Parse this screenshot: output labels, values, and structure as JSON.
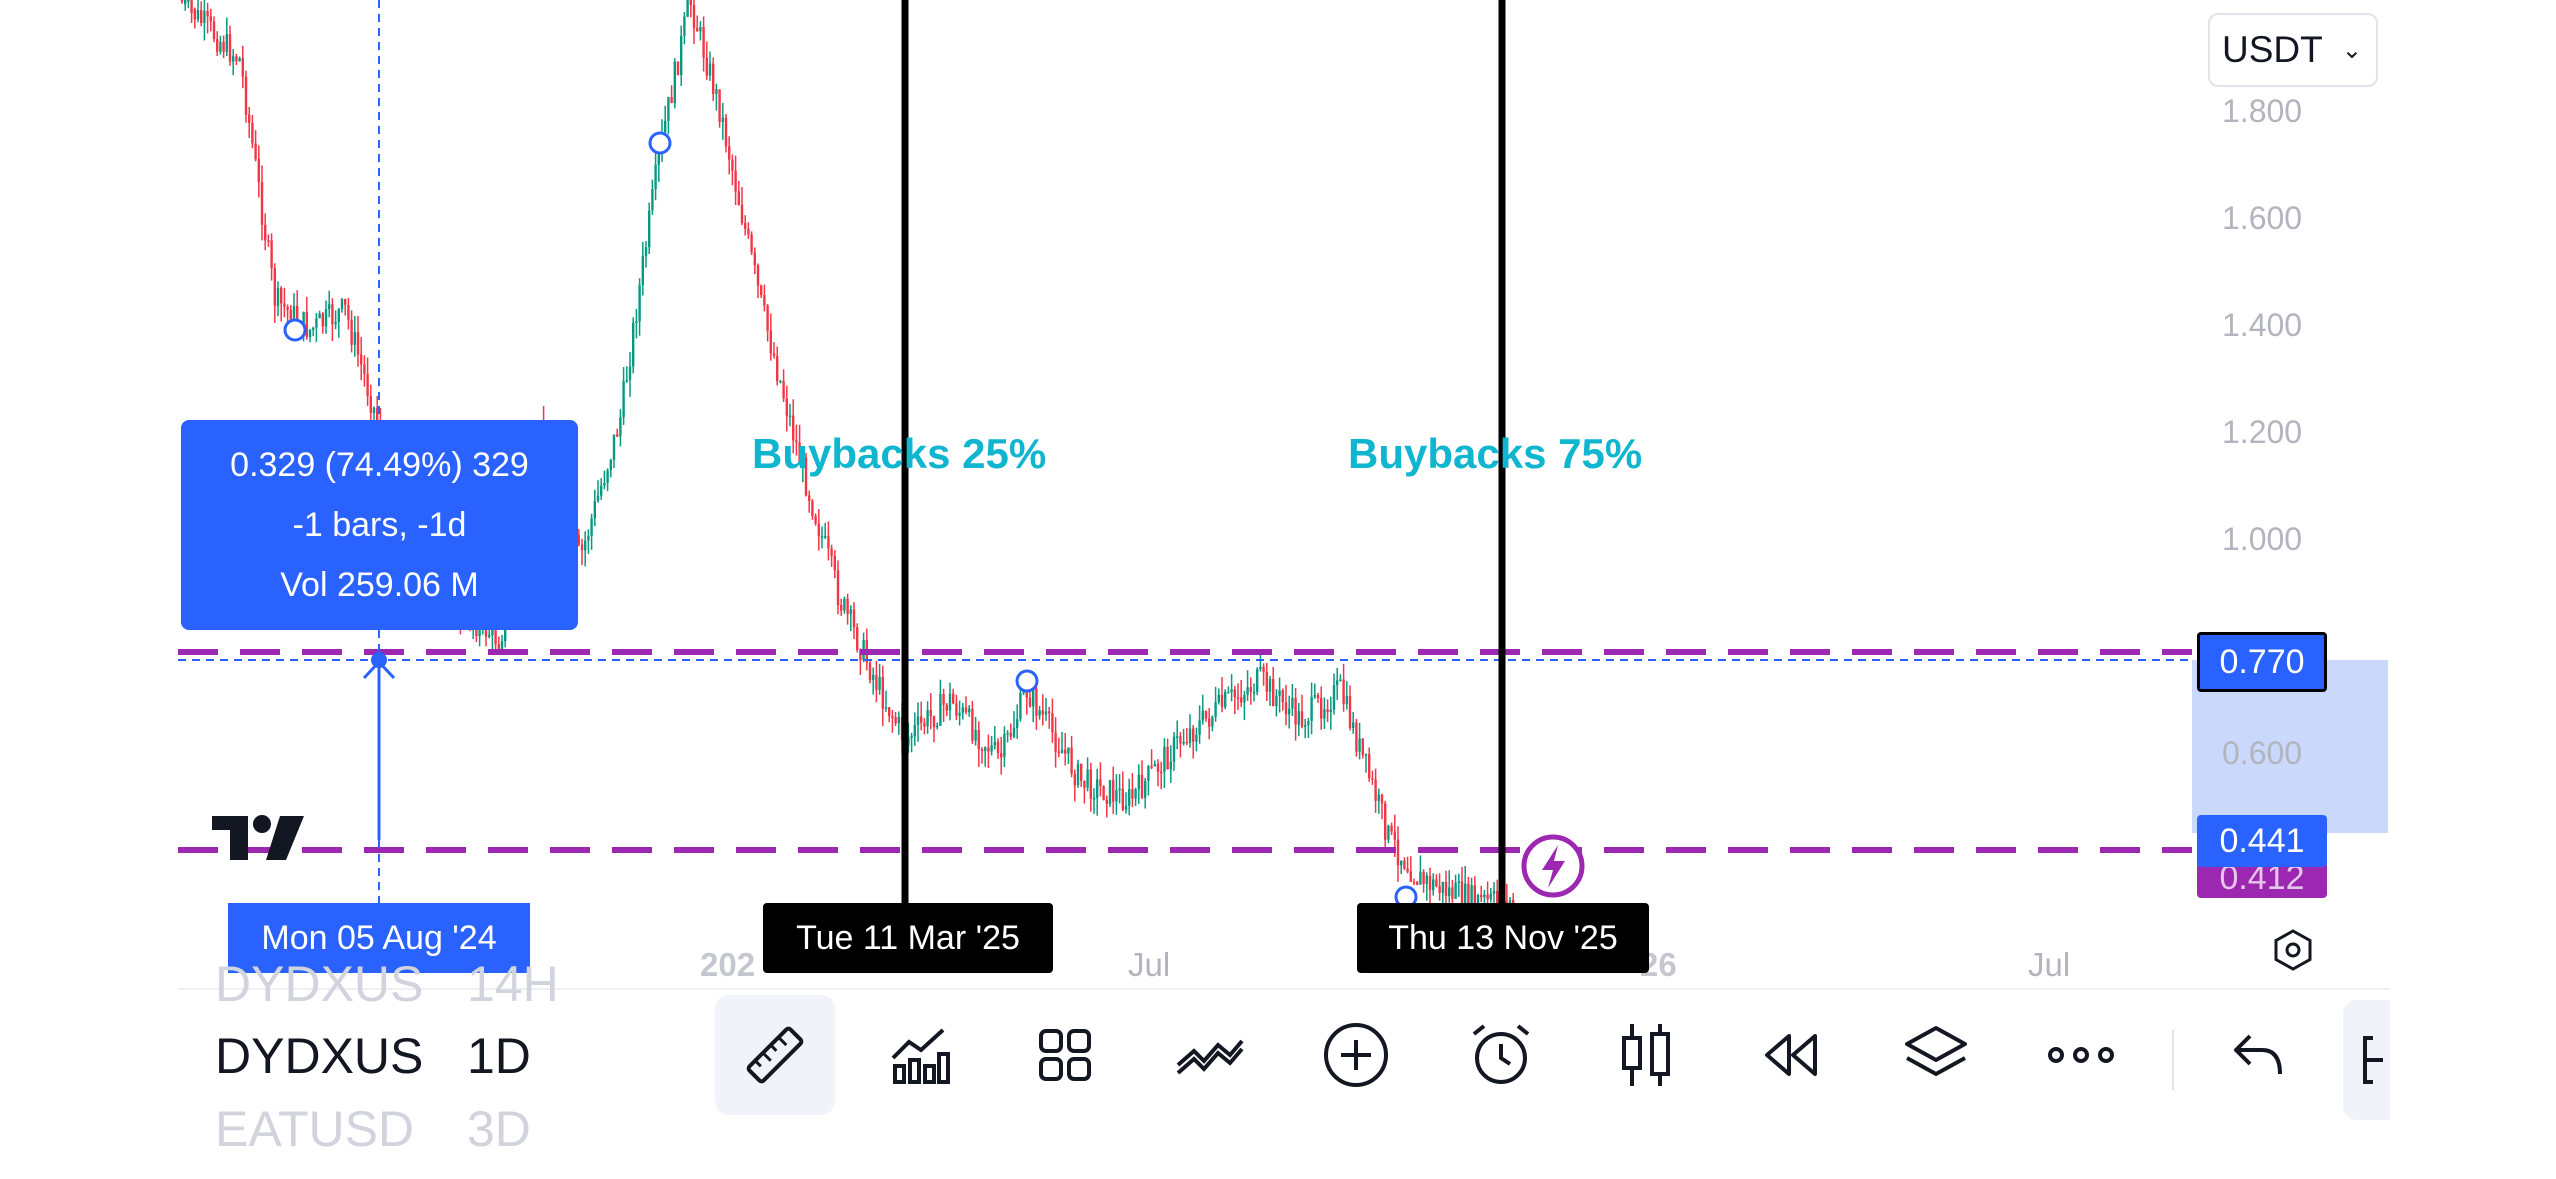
{
  "currency_select": {
    "value": "USDT"
  },
  "price_axis": {
    "labels": [
      "1.800",
      "1.600",
      "1.400",
      "1.200",
      "1.000",
      "0.600"
    ],
    "badge_upper": "0.770",
    "badge_lower": "0.441",
    "badge_hidden": "0.412"
  },
  "time_axis": {
    "labels": [
      "202",
      "Jul",
      "26",
      "Jul"
    ]
  },
  "measure_tooltip": {
    "line1": "0.329 (74.49%) 329",
    "line2": "-1 bars, -1d",
    "line3": "Vol 259.06 M"
  },
  "crosshair_date": "Mon 05 Aug '24",
  "vertical_lines": [
    {
      "date": "Tue 11 Mar '25",
      "annotation": "Buybacks 25%"
    },
    {
      "date": "Thu 13 Nov '25",
      "annotation": "Buybacks 75%"
    }
  ],
  "symbols": [
    {
      "name": "DYDXUS",
      "timeframe": "14H"
    },
    {
      "name": "DYDXUS",
      "timeframe": "1D"
    },
    {
      "name": "EATUSD",
      "timeframe": "3D"
    }
  ],
  "toolbar": {
    "tools": [
      "ruler-icon",
      "indicators-icon",
      "layouts-icon",
      "drawings-icon",
      "add-icon",
      "alert-icon",
      "candles-icon",
      "replay-icon",
      "layers-icon",
      "more-icon",
      "undo-icon",
      "panel-icon"
    ]
  },
  "colors": {
    "accent": "#2962ff",
    "bull": "#089981",
    "bear": "#f23645",
    "level_line": "#9c27b0",
    "annotation": "#10b5d0",
    "range_fill": "#c9d8fb"
  }
}
